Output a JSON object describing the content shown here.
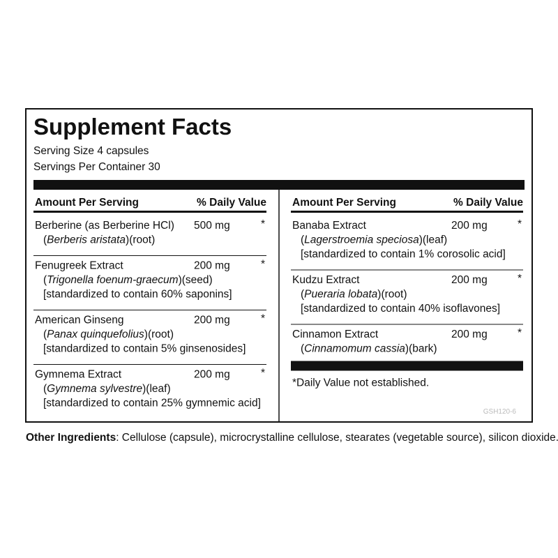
{
  "title": "Supplement Facts",
  "serving_size": "Serving Size 4 capsules",
  "servings_per_container": "Servings Per Container 30",
  "columns": [
    {
      "header": {
        "amount": "Amount Per Serving",
        "daily_value": "% Daily Value"
      },
      "ingredients": [
        {
          "name": "Berberine (as Berberine HCl)",
          "amount": "500 mg",
          "daily_value": "*",
          "source": {
            "open": "(",
            "latin": "Berberis aristata",
            "close": ")(root)"
          }
        },
        {
          "name": "Fenugreek Extract",
          "amount": "200 mg",
          "daily_value": "*",
          "source": {
            "open": "(",
            "latin": "Trigonella foenum-graecum",
            "close": ")(seed)"
          },
          "standardized": "[standardized to contain 60% saponins]"
        },
        {
          "name": "American Ginseng",
          "amount": "200 mg",
          "daily_value": "*",
          "source": {
            "open": "(",
            "latin": "Panax quinquefolius",
            "close": ")(root)"
          },
          "standardized": "[standardized to contain 5% ginsenosides]"
        },
        {
          "name": "Gymnema Extract",
          "amount": "200 mg",
          "daily_value": "*",
          "source": {
            "open": "(",
            "latin": "Gymnema sylvestre",
            "close": ")(leaf)"
          },
          "standardized": "[standardized to contain 25% gymnemic acid]"
        }
      ]
    },
    {
      "header": {
        "amount": "Amount Per Serving",
        "daily_value": "% Daily Value"
      },
      "ingredients": [
        {
          "name": "Banaba Extract",
          "amount": "200 mg",
          "daily_value": "*",
          "source": {
            "open": "(",
            "latin": "Lagerstroemia speciosa",
            "close": ")(leaf)"
          },
          "standardized": "[standardized to contain 1% corosolic acid]"
        },
        {
          "name": "Kudzu Extract",
          "amount": "200 mg",
          "daily_value": "*",
          "source": {
            "open": "(",
            "latin": "Pueraria lobata",
            "close": ")(root)"
          },
          "standardized": "[standardized to contain 40% isoflavones]"
        },
        {
          "name": "Cinnamon Extract",
          "amount": "200 mg",
          "daily_value": "*",
          "source": {
            "open": "(",
            "latin": "Cinnamomum cassia",
            "close": ")(bark)"
          }
        }
      ]
    }
  ],
  "footnote": "*Daily Value not established.",
  "code": "GSH120-6",
  "other_ingredients": {
    "label": "Other Ingredients",
    "text": ": Cellulose (capsule), microcrystalline cellulose, stearates (vegetable source), silicon dioxide."
  }
}
